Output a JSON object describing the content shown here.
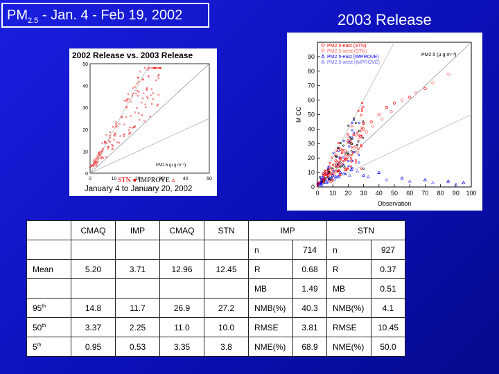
{
  "slide": {
    "title_pm": "PM",
    "title_sub": "2.5",
    "title_dates": " - Jan. 4 -  Feb 19, 2002",
    "release_label": "2003 Release"
  },
  "small_chart": {
    "title": "2002 Release vs. 2003 Release",
    "footer": "January 4  to  January 20,  2002",
    "legend_stn": "STN",
    "legend_improve": "IMPROVE",
    "pm_label": "PM",
    "pm_sub": "2.5",
    "pm_units": "(μ g m⁻³)",
    "y_ticks": [
      "0",
      "10",
      "20",
      "30",
      "40",
      "50"
    ],
    "x_ticks": [
      "0",
      "10",
      "20",
      "30",
      "40",
      "50"
    ]
  },
  "chart_data": {
    "type": "scatter",
    "title": "2003 Release",
    "xlabel": "Observation",
    "ylabel": "M CC",
    "xlim": [
      0,
      100
    ],
    "ylim": [
      0,
      100
    ],
    "x_ticks": [
      "0",
      "10",
      "20",
      "30",
      "40",
      "50",
      "60",
      "70",
      "80",
      "90",
      "100"
    ],
    "y_ticks": [
      "0",
      "10",
      "20",
      "30",
      "40",
      "50",
      "60",
      "70",
      "80",
      "90"
    ],
    "legend": [
      "PM2.5-east (STN)",
      "PM2.5-west (STN)",
      "PM2.5-east (IMPROVE)",
      "PM2.5-west (IMPROVE)"
    ],
    "legend_colors": [
      "#ff0000",
      "#ff6666",
      "#0000ff",
      "#6666ff"
    ],
    "units_label": "PM",
    "units_sub": "2.5",
    "units_tail": "(μ g m⁻³)",
    "series": [
      {
        "name": "PM2.5-east (STN)",
        "marker": "o",
        "color": "#ff0000",
        "x": [
          2,
          5,
          8,
          10,
          12,
          15,
          18,
          20,
          22,
          25,
          28,
          30,
          35,
          40,
          45,
          50,
          60,
          70,
          8,
          12,
          15,
          20,
          25,
          30,
          10,
          14,
          18,
          22,
          6,
          9
        ],
        "y": [
          3,
          6,
          10,
          12,
          18,
          20,
          25,
          22,
          30,
          28,
          35,
          40,
          45,
          50,
          55,
          58,
          62,
          68,
          14,
          22,
          26,
          32,
          36,
          44,
          8,
          16,
          12,
          18,
          9,
          4
        ]
      },
      {
        "name": "PM2.5-west (STN)",
        "marker": "o",
        "color": "#ff6666",
        "x": [
          4,
          7,
          11,
          13,
          16,
          19,
          24,
          27,
          32,
          36,
          42,
          48,
          55,
          64,
          75,
          85,
          20,
          26
        ],
        "y": [
          5,
          8,
          15,
          11,
          24,
          19,
          27,
          33,
          38,
          42,
          47,
          52,
          60,
          65,
          72,
          78,
          35,
          24
        ]
      },
      {
        "name": "PM2.5-east (IMPROVE)",
        "marker": "^",
        "color": "#0000ff",
        "x": [
          2,
          3,
          5,
          6,
          8,
          10,
          12,
          15,
          18,
          22,
          30,
          40,
          55,
          70,
          85,
          95
        ],
        "y": [
          2,
          4,
          5,
          3,
          6,
          8,
          7,
          10,
          9,
          12,
          8,
          10,
          6,
          5,
          4,
          3
        ]
      },
      {
        "name": "PM2.5-west (IMPROVE)",
        "marker": "^",
        "color": "#6666ff",
        "x": [
          3,
          5,
          7,
          9,
          11,
          14,
          17,
          21,
          26,
          33,
          45,
          60,
          75,
          90
        ],
        "y": [
          1,
          3,
          4,
          6,
          5,
          7,
          9,
          8,
          11,
          7,
          5,
          4,
          3,
          2
        ]
      }
    ]
  },
  "table": {
    "headers": [
      "",
      "CMAQ",
      "IMP",
      "CMAQ",
      "STN",
      "IMP",
      "STN"
    ],
    "rows": [
      [
        "",
        "",
        "",
        "",
        "",
        "n",
        "714",
        "n",
        "927"
      ],
      [
        "Mean",
        "5.20",
        "3.71",
        "12.96",
        "12.45",
        "R",
        "0.68",
        "R",
        "0.37"
      ],
      [
        "",
        "",
        "",
        "",
        "",
        "MB",
        "1.49",
        "MB",
        "0.51"
      ],
      [
        "95",
        "14.8",
        "11.7",
        "26.9",
        "27.2",
        "NMB(%)",
        "40.3",
        "NMB(%)",
        "4.1"
      ],
      [
        "50",
        "3.37",
        "2.25",
        "11.0",
        "10.0",
        "RMSE",
        "3.81",
        "RMSE",
        "10.45"
      ],
      [
        "5",
        "0.95",
        "0.53",
        "3.35",
        "3.8",
        "NME(%)",
        "68.9",
        "NME(%)",
        "50.0"
      ]
    ],
    "th_sup": "th"
  }
}
